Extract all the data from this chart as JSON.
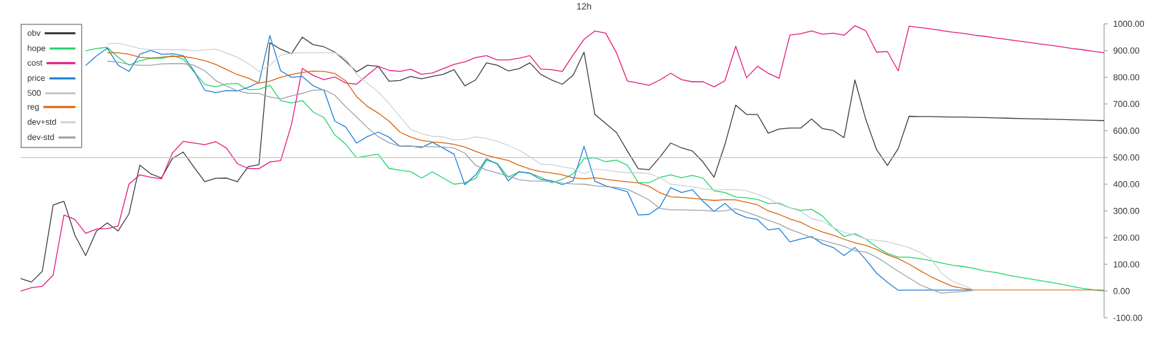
{
  "chart_data": {
    "type": "line",
    "title": "12h",
    "legend": "top left",
    "line_style": "solid",
    "tick_labels": "y",
    "categories": [
      null,
      null,
      null,
      null,
      null,
      null,
      null,
      null,
      null,
      null,
      null,
      null,
      null,
      null,
      null,
      null,
      null,
      null,
      null,
      null,
      null,
      null,
      null,
      null,
      null,
      null,
      null,
      null,
      null,
      null,
      null,
      null,
      null,
      null,
      null,
      null,
      null,
      null,
      null,
      null,
      null,
      null,
      null,
      null,
      null,
      null,
      null,
      null,
      null,
      null,
      null,
      null,
      null,
      null,
      null,
      null,
      null,
      null,
      null,
      null,
      null,
      null,
      null,
      null,
      null,
      null,
      null,
      null,
      null,
      null,
      null,
      null,
      null,
      null,
      null,
      null,
      null,
      null,
      null,
      null,
      null,
      null,
      null,
      null,
      null,
      null,
      null,
      null,
      null,
      null,
      null,
      null,
      null,
      null,
      null,
      null,
      null,
      null,
      null,
      null,
      null
    ],
    "ylim": [
      -100,
      1000
    ],
    "yticks": [
      {
        "value": -100,
        "label": "-100.00"
      },
      {
        "value": 0,
        "label": "0.00"
      },
      {
        "value": 100,
        "label": "100.00"
      },
      {
        "value": 200,
        "label": "200.00"
      },
      {
        "value": 300,
        "label": "300.00"
      },
      {
        "value": 400,
        "label": "400.00"
      },
      {
        "value": 500,
        "label": "500.00"
      },
      {
        "value": 600,
        "label": "600.00"
      },
      {
        "value": 700,
        "label": "700.00"
      },
      {
        "value": 800,
        "label": "800.00"
      },
      {
        "value": 900,
        "label": "900.00"
      },
      {
        "value": 1000,
        "label": "1000.00"
      }
    ],
    "series": [
      {
        "name": "obv",
        "color": "#3c3c3c",
        "values": [
          47,
          34,
          74,
          322,
          336,
          210,
          133,
          225,
          255,
          225,
          289,
          471,
          439,
          423,
          496,
          520,
          464,
          409,
          422,
          423,
          409,
          466,
          473,
          929,
          905,
          888,
          950,
          922,
          914,
          894,
          860,
          820,
          845,
          841,
          785,
          788,
          803,
          794,
          803,
          811,
          828,
          768,
          790,
          854,
          845,
          824,
          832,
          854,
          811,
          790,
          774,
          808,
          894,
          661,
          627,
          593,
          524,
          458,
          454,
          501,
          554,
          536,
          524,
          482,
          426,
          548,
          696,
          661,
          661,
          591,
          606,
          610,
          610,
          644,
          608,
          601,
          574,
          790,
          643,
          529,
          470,
          533,
          654,
          653,
          653,
          652,
          651,
          651,
          650,
          649,
          648,
          647,
          646,
          645,
          644,
          643,
          642,
          641,
          640,
          639,
          638
        ]
      },
      {
        "name": "hope",
        "color": "#22d46c",
        "values": [
          null,
          null,
          null,
          null,
          null,
          null,
          899,
          908,
          912,
          875,
          845,
          862,
          871,
          870,
          881,
          868,
          820,
          773,
          764,
          775,
          777,
          753,
          755,
          770,
          713,
          704,
          713,
          670,
          649,
          584,
          550,
          499,
          506,
          512,
          459,
          452,
          447,
          423,
          446,
          423,
          400,
          405,
          422,
          490,
          477,
          426,
          446,
          441,
          426,
          405,
          418,
          439,
          495,
          499,
          484,
          490,
          471,
          406,
          405,
          425,
          435,
          424,
          433,
          422,
          375,
          369,
          352,
          349,
          343,
          328,
          329,
          312,
          302,
          306,
          281,
          238,
          204,
          215,
          195,
          165,
          141,
          127,
          127,
          121,
          114,
          105,
          97,
          92,
          85,
          75,
          70,
          61,
          53,
          47,
          40,
          33,
          26,
          18,
          10,
          5,
          0
        ]
      },
      {
        "name": "cost",
        "color": "#e3187d",
        "values": [
          0,
          13,
          18,
          60,
          285,
          268,
          216,
          232,
          234,
          243,
          400,
          435,
          426,
          420,
          516,
          560,
          554,
          548,
          559,
          535,
          477,
          459,
          458,
          483,
          488,
          623,
          833,
          807,
          791,
          801,
          779,
          774,
          808,
          841,
          826,
          822,
          830,
          811,
          816,
          832,
          848,
          858,
          874,
          881,
          865,
          865,
          871,
          881,
          831,
          828,
          822,
          884,
          942,
          973,
          965,
          891,
          786,
          778,
          770,
          790,
          815,
          791,
          783,
          783,
          764,
          787,
          916,
          798,
          841,
          815,
          796,
          958,
          963,
          973,
          961,
          965,
          957,
          993,
          974,
          894,
          896,
          824,
          991,
          986,
          981,
          975,
          969,
          964,
          958,
          953,
          947,
          942,
          936,
          931,
          925,
          920,
          914,
          908,
          903,
          897,
          892
        ]
      },
      {
        "name": "price",
        "color": "#1b7fd9",
        "values": [
          null,
          null,
          null,
          null,
          null,
          null,
          844,
          880,
          909,
          845,
          822,
          886,
          901,
          886,
          888,
          881,
          824,
          751,
          743,
          750,
          749,
          762,
          781,
          956,
          824,
          800,
          803,
          768,
          751,
          636,
          614,
          554,
          578,
          595,
          576,
          542,
          543,
          537,
          557,
          535,
          512,
          398,
          435,
          495,
          475,
          413,
          447,
          441,
          418,
          413,
          398,
          413,
          542,
          411,
          394,
          383,
          372,
          285,
          287,
          315,
          387,
          369,
          379,
          335,
          298,
          328,
          292,
          275,
          268,
          229,
          234,
          184,
          195,
          204,
          177,
          163,
          133,
          163,
          118,
          67,
          33,
          3,
          4,
          4,
          4,
          4,
          4,
          4,
          4,
          null,
          null,
          null,
          null,
          null,
          null,
          null,
          null,
          null,
          null,
          null,
          null
        ]
      },
      {
        "name": "500",
        "color": "#c4c4c4",
        "values": [
          500,
          500,
          500,
          500,
          500,
          500,
          500,
          500,
          500,
          500,
          500,
          500,
          500,
          500,
          500,
          500,
          500,
          500,
          500,
          500,
          500,
          500,
          500,
          500,
          500,
          500,
          500,
          500,
          500,
          500,
          500,
          500,
          500,
          500,
          500,
          500,
          500,
          500,
          500,
          500,
          500,
          500,
          500,
          500,
          500,
          500,
          500,
          500,
          500,
          500,
          500,
          500,
          500,
          500,
          500,
          500,
          500,
          500,
          500,
          500,
          500,
          500,
          500,
          500,
          500,
          500,
          500,
          500,
          500,
          500,
          500,
          500,
          500,
          500,
          500,
          500,
          500,
          500,
          500,
          500,
          500,
          500,
          500,
          500,
          500,
          500,
          500,
          500,
          500,
          500,
          500,
          500,
          500,
          500,
          500,
          500,
          500,
          500,
          500,
          500,
          500
        ]
      },
      {
        "name": "reg",
        "color": "#d9620b",
        "values": [
          null,
          null,
          null,
          null,
          null,
          null,
          null,
          null,
          892,
          892,
          886,
          875,
          872,
          875,
          878,
          878,
          871,
          862,
          848,
          829,
          810,
          797,
          778,
          785,
          800,
          810,
          818,
          823,
          822,
          814,
          787,
          728,
          691,
          666,
          636,
          595,
          576,
          564,
          558,
          555,
          549,
          539,
          523,
          508,
          498,
          489,
          471,
          457,
          447,
          442,
          435,
          424,
          420,
          424,
          418,
          413,
          409,
          405,
          392,
          368,
          353,
          351,
          347,
          343,
          339,
          342,
          341,
          332,
          323,
          300,
          287,
          270,
          257,
          237,
          221,
          209,
          194,
          181,
          171,
          156,
          136,
          121,
          101,
          77,
          54,
          35,
          18,
          10,
          4,
          4,
          4,
          4,
          4,
          4,
          4,
          4,
          4,
          4,
          4,
          4,
          4
        ]
      },
      {
        "name": "dev+std",
        "color": "#ccd2d7",
        "values": [
          null,
          null,
          null,
          null,
          null,
          null,
          null,
          null,
          925,
          927,
          918,
          907,
          903,
          904,
          903,
          903,
          899,
          902,
          905,
          891,
          875,
          851,
          822,
          844,
          883,
          890,
          892,
          892,
          892,
          892,
          870,
          811,
          777,
          745,
          702,
          653,
          605,
          589,
          579,
          577,
          565,
          568,
          577,
          571,
          560,
          545,
          527,
          503,
          475,
          473,
          465,
          458,
          439,
          457,
          453,
          447,
          443,
          443,
          440,
          425,
          400,
          395,
          390,
          383,
          379,
          379,
          380,
          375,
          362,
          347,
          325,
          311,
          299,
          271,
          262,
          238,
          220,
          210,
          195,
          190,
          185,
          174,
          163,
          145,
          122,
          67,
          37,
          21,
          4,
          null,
          null,
          null,
          null,
          null,
          null,
          null,
          null,
          null,
          null,
          null,
          null
        ]
      },
      {
        "name": "dev-std",
        "color": "#9aa3ac",
        "values": [
          null,
          null,
          null,
          null,
          null,
          null,
          null,
          null,
          860,
          857,
          848,
          845,
          845,
          850,
          851,
          851,
          845,
          824,
          788,
          767,
          750,
          740,
          739,
          726,
          719,
          730,
          740,
          752,
          753,
          733,
          690,
          652,
          612,
          578,
          555,
          542,
          542,
          541,
          540,
          539,
          535,
          516,
          470,
          453,
          442,
          430,
          417,
          412,
          412,
          410,
          404,
          401,
          400,
          394,
          391,
          388,
          381,
          362,
          341,
          309,
          304,
          304,
          303,
          302,
          299,
          300,
          308,
          295,
          281,
          265,
          251,
          231,
          216,
          200,
          190,
          179,
          168,
          151,
          146,
          127,
          101,
          74,
          49,
          24,
          7,
          -8,
          -4,
          -2,
          3,
          null,
          null,
          null,
          null,
          null,
          null,
          null,
          null,
          null,
          null,
          null,
          null
        ]
      }
    ]
  }
}
